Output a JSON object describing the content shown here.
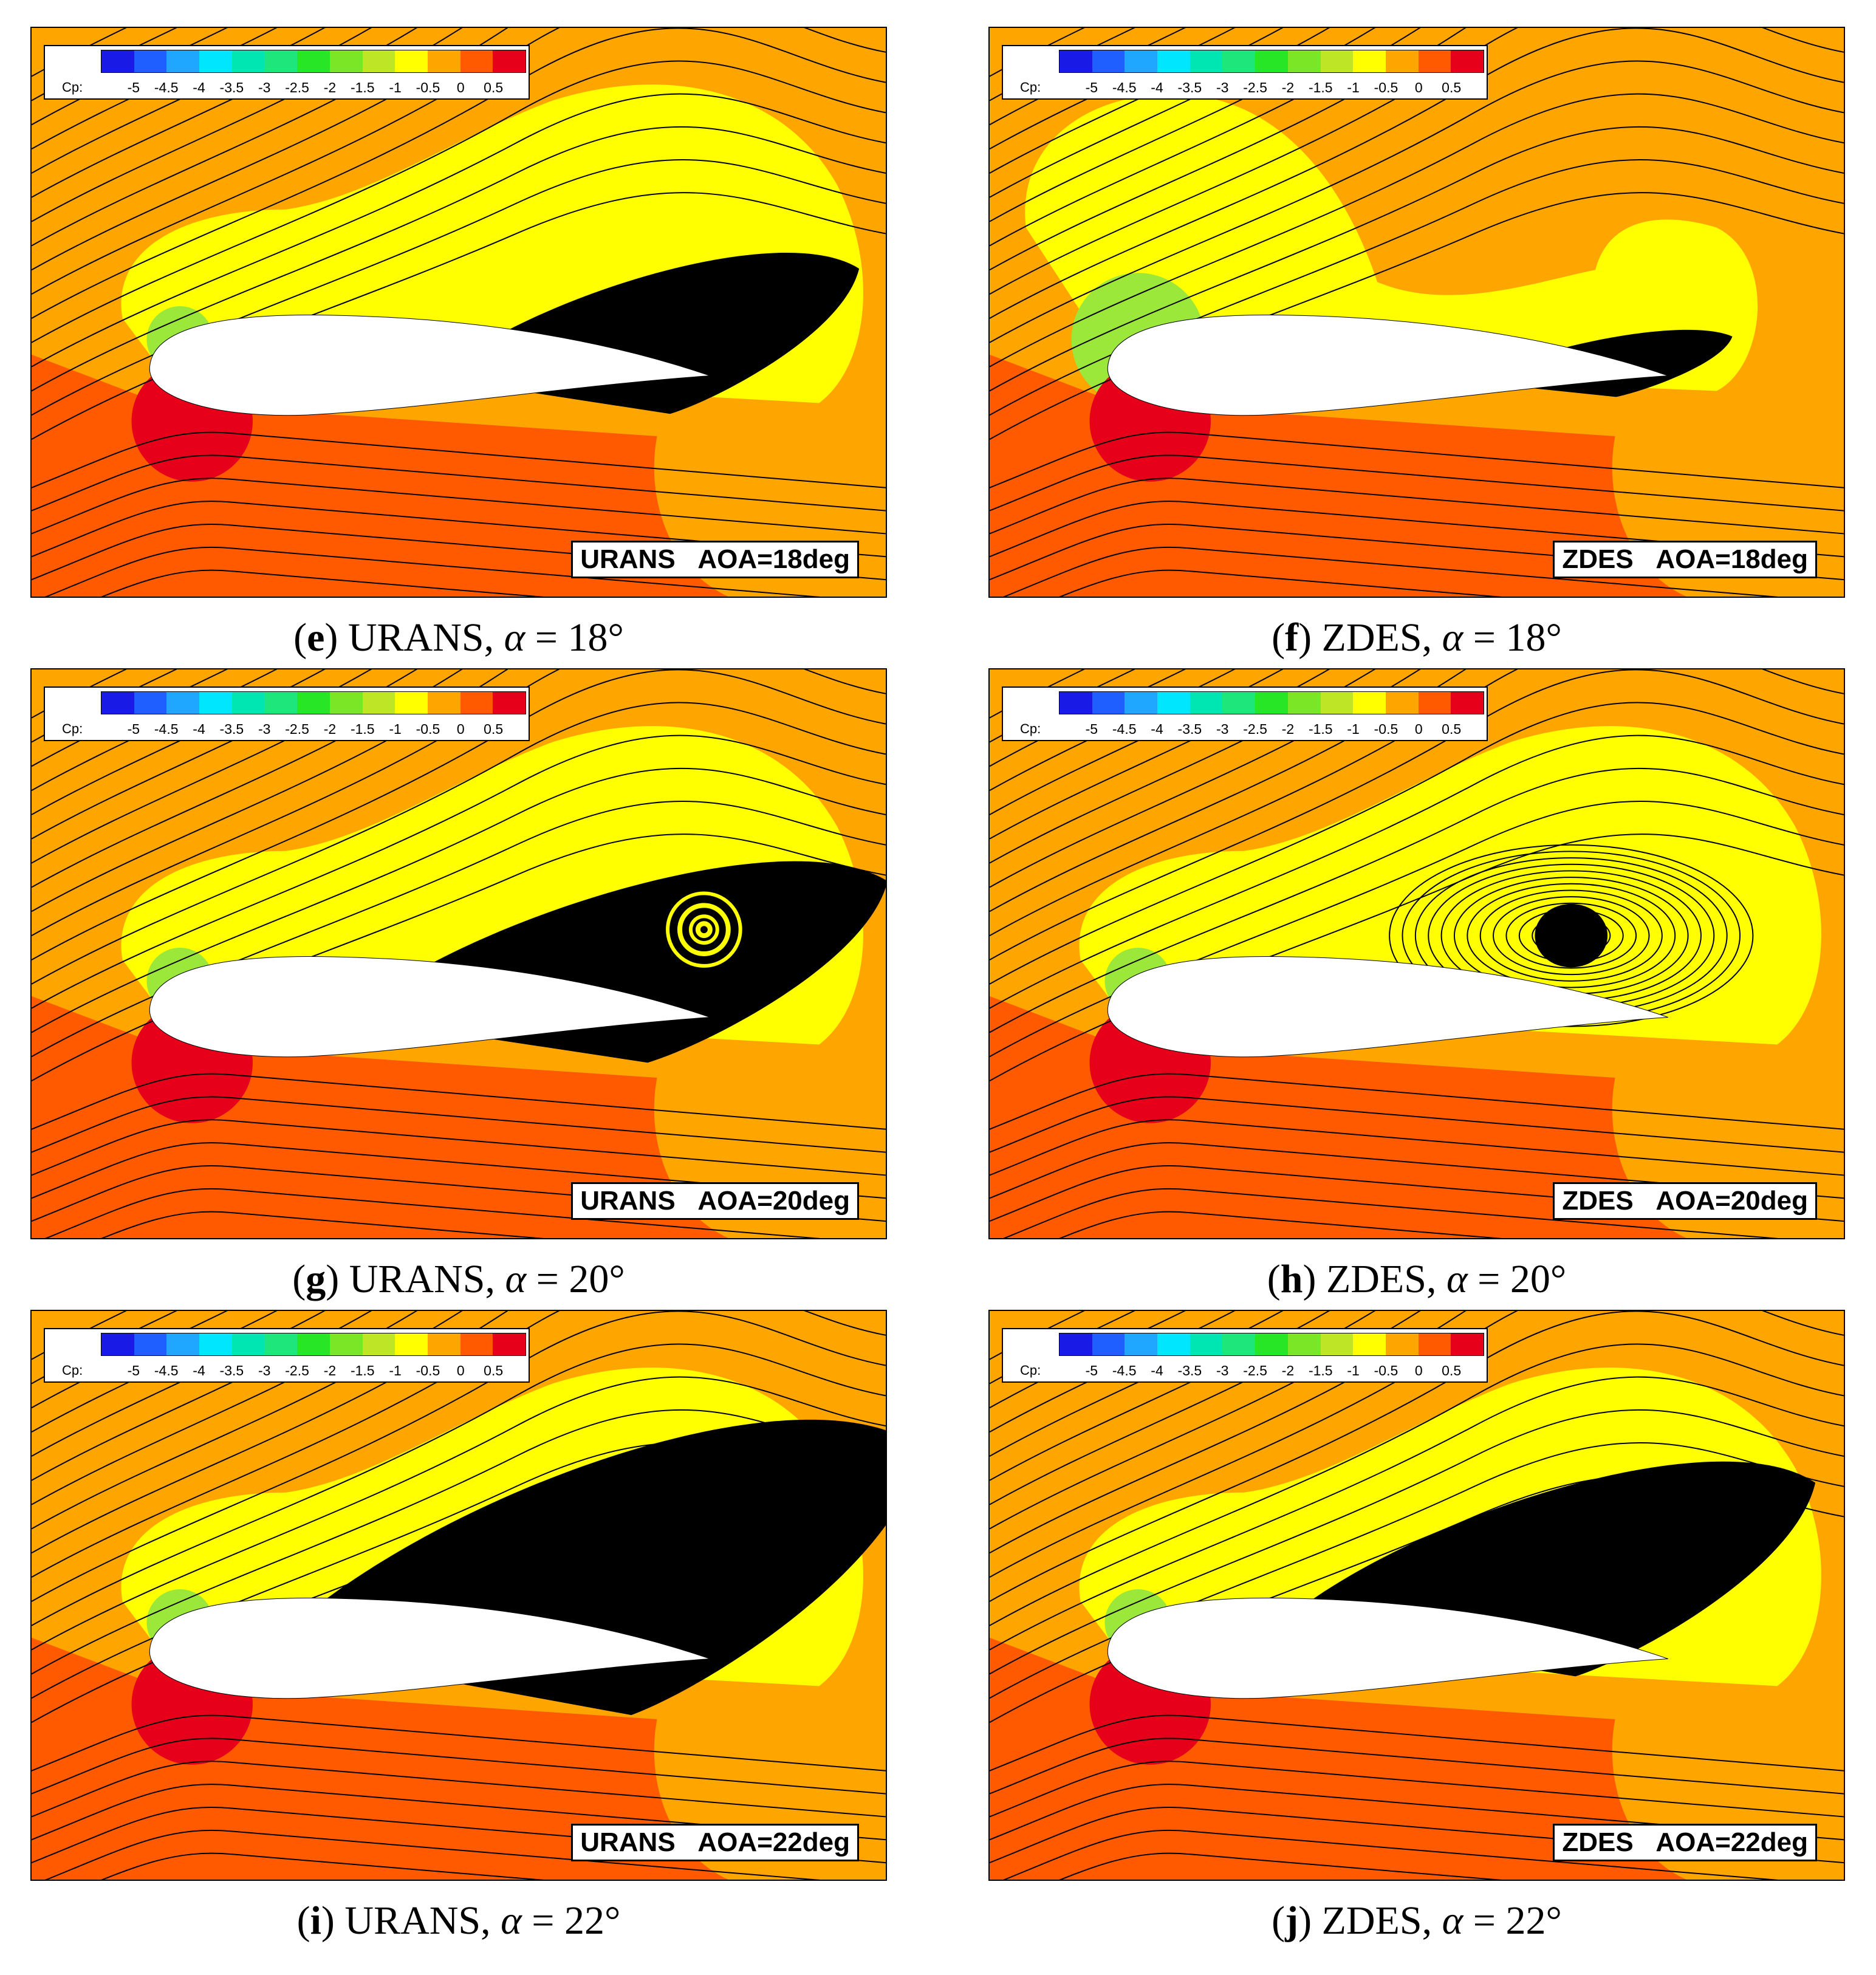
{
  "colorbar": {
    "label": "Cp:",
    "ticks": [
      "-5",
      "-4.5",
      "-4",
      "-3.5",
      "-3",
      "-2.5",
      "-2",
      "-1.5",
      "-1",
      "-0.5",
      "0",
      "0.5"
    ],
    "colors": [
      "#1A1AE6",
      "#1F5FFF",
      "#1FA6FF",
      "#00E6FF",
      "#00E6B3",
      "#1FE67A",
      "#26E626",
      "#7AE626",
      "#BFE626",
      "#FFFF00",
      "#FFA500",
      "#FF5A00",
      "#E6001A"
    ]
  },
  "panels": [
    {
      "id": "e",
      "method": "URANS",
      "aoa": "AOA=18deg",
      "caption_letter": "e",
      "caption_text": " URANS, ",
      "caption_symbol": "α",
      "caption_value": " = 18°"
    },
    {
      "id": "f",
      "method": "ZDES",
      "aoa": "AOA=18deg",
      "caption_letter": "f",
      "caption_text": " ZDES, ",
      "caption_symbol": "α",
      "caption_value": " = 18°"
    },
    {
      "id": "g",
      "method": "URANS",
      "aoa": "AOA=20deg",
      "caption_letter": "g",
      "caption_text": " URANS, ",
      "caption_symbol": "α",
      "caption_value": " = 20°"
    },
    {
      "id": "h",
      "method": "ZDES",
      "aoa": "AOA=20deg",
      "caption_letter": "h",
      "caption_text": " ZDES, ",
      "caption_symbol": "α",
      "caption_value": " = 20°"
    },
    {
      "id": "i",
      "method": "URANS",
      "aoa": "AOA=22deg",
      "caption_letter": "i",
      "caption_text": " URANS, ",
      "caption_symbol": "α",
      "caption_value": " = 22°"
    },
    {
      "id": "j",
      "method": "ZDES",
      "aoa": "AOA=22deg",
      "caption_letter": "j",
      "caption_text": " ZDES, ",
      "caption_symbol": "α",
      "caption_value": " = 22°"
    }
  ]
}
